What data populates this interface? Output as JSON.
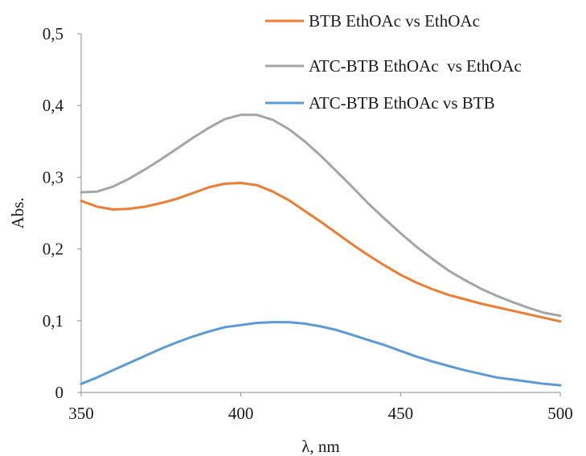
{
  "chart_data": {
    "type": "line",
    "title": "",
    "xlabel": "λ, nm",
    "ylabel": "Abs.",
    "xlim": [
      350,
      500
    ],
    "ylim": [
      0,
      0.5
    ],
    "xticks": [
      350,
      400,
      450,
      500
    ],
    "xtick_labels": [
      "350",
      "400",
      "450",
      "500"
    ],
    "yticks": [
      0,
      0.1,
      0.2,
      0.3,
      0.4,
      0.5
    ],
    "ytick_labels": [
      "0",
      "0,1",
      "0,2",
      "0,3",
      "0,4",
      "0,5"
    ],
    "grid": false,
    "legend_position": "top-right",
    "series": [
      {
        "name": "BTB EthOAc vs EthOAc",
        "color": "#ED7D31",
        "x": [
          350,
          355,
          360,
          365,
          370,
          375,
          380,
          385,
          390,
          395,
          400,
          405,
          410,
          415,
          420,
          425,
          430,
          435,
          440,
          445,
          450,
          455,
          460,
          465,
          470,
          475,
          480,
          485,
          490,
          495,
          500
        ],
        "y": [
          0.267,
          0.259,
          0.255,
          0.256,
          0.259,
          0.264,
          0.27,
          0.278,
          0.286,
          0.291,
          0.292,
          0.289,
          0.28,
          0.268,
          0.253,
          0.238,
          0.222,
          0.206,
          0.191,
          0.177,
          0.164,
          0.153,
          0.144,
          0.136,
          0.13,
          0.124,
          0.119,
          0.114,
          0.109,
          0.104,
          0.099
        ]
      },
      {
        "name": "ATC-BTB EthOAc  vs EthOAc",
        "color": "#A5A5A5",
        "x": [
          350,
          355,
          360,
          365,
          370,
          375,
          380,
          385,
          390,
          395,
          400,
          405,
          410,
          415,
          420,
          425,
          430,
          435,
          440,
          445,
          450,
          455,
          460,
          465,
          470,
          475,
          480,
          485,
          490,
          495,
          500
        ],
        "y": [
          0.279,
          0.28,
          0.287,
          0.298,
          0.311,
          0.325,
          0.34,
          0.355,
          0.369,
          0.381,
          0.387,
          0.387,
          0.38,
          0.367,
          0.35,
          0.33,
          0.308,
          0.286,
          0.263,
          0.242,
          0.222,
          0.203,
          0.186,
          0.17,
          0.157,
          0.145,
          0.135,
          0.126,
          0.118,
          0.111,
          0.107
        ]
      },
      {
        "name": "ATC-BTB EthOAc vs BTB",
        "color": "#5B9BD5",
        "x": [
          350,
          355,
          360,
          365,
          370,
          375,
          380,
          385,
          390,
          395,
          400,
          405,
          410,
          415,
          420,
          425,
          430,
          435,
          440,
          445,
          450,
          455,
          460,
          465,
          470,
          475,
          480,
          485,
          490,
          495,
          500
        ],
        "y": [
          0.012,
          0.021,
          0.031,
          0.041,
          0.051,
          0.061,
          0.07,
          0.078,
          0.085,
          0.091,
          0.094,
          0.097,
          0.098,
          0.098,
          0.096,
          0.092,
          0.087,
          0.08,
          0.073,
          0.066,
          0.058,
          0.05,
          0.043,
          0.037,
          0.031,
          0.026,
          0.021,
          0.018,
          0.015,
          0.012,
          0.01
        ]
      }
    ]
  }
}
